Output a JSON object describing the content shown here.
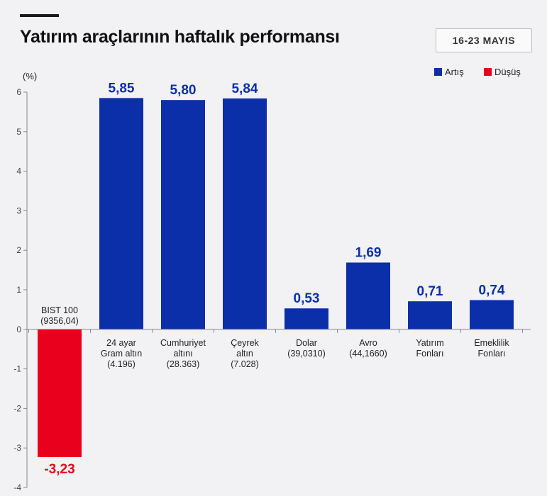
{
  "header": {
    "title": "Yatırım araçlarının haftalık performansı",
    "date_range": "16-23 MAYIS"
  },
  "chart_data": {
    "type": "bar",
    "ylabel": "(%)",
    "ylim": [
      -4,
      6
    ],
    "yticks": [
      6,
      5,
      4,
      3,
      2,
      1,
      0,
      -1,
      -2,
      -3,
      -4
    ],
    "legend": [
      {
        "name": "Artış",
        "color": "#0b2fa8"
      },
      {
        "name": "Düşüş",
        "color": "#e8001c"
      }
    ],
    "colors": {
      "increase": "#0b2fa8",
      "decrease": "#e8001c"
    },
    "categories": [
      {
        "lines": [
          "BIST 100",
          "(9356,04)"
        ],
        "value": -3.23,
        "value_label": "-3,23"
      },
      {
        "lines": [
          "24 ayar",
          "Gram altın",
          "(4.196)"
        ],
        "value": 5.85,
        "value_label": "5,85"
      },
      {
        "lines": [
          "Cumhuriyet",
          "altını",
          "(28.363)"
        ],
        "value": 5.8,
        "value_label": "5,80"
      },
      {
        "lines": [
          "Çeyrek",
          "altın",
          "(7.028)"
        ],
        "value": 5.84,
        "value_label": "5,84"
      },
      {
        "lines": [
          "Dolar",
          "(39,0310)"
        ],
        "value": 0.53,
        "value_label": "0,53"
      },
      {
        "lines": [
          "Avro",
          "(44,1660)"
        ],
        "value": 1.69,
        "value_label": "1,69"
      },
      {
        "lines": [
          "Yatırım",
          "Fonları"
        ],
        "value": 0.71,
        "value_label": "0,71"
      },
      {
        "lines": [
          "Emeklilik",
          "Fonları"
        ],
        "value": 0.74,
        "value_label": "0,74"
      }
    ]
  }
}
